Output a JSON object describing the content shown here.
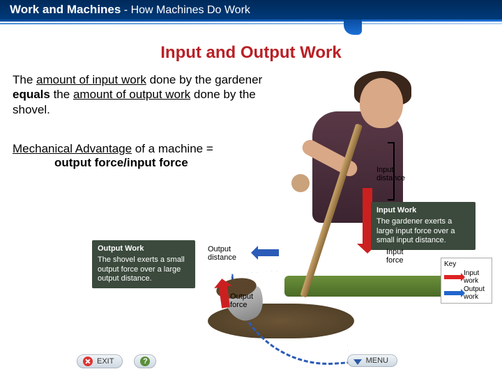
{
  "colors": {
    "header_bg_top": "#002a5a",
    "header_bg_bottom": "#003a7a",
    "accent1": "#0a4da0",
    "accent2": "#1a6fd6",
    "title_red": "#b92025",
    "input_arrow": "#cc2020",
    "output_arrow": "#2b5bb8",
    "caption_bg": "#3b4a3c",
    "caption_text": "#ffffff"
  },
  "fonts": {
    "family": "Arial, Helvetica, sans-serif",
    "header_title_pt": 17,
    "header_sub_pt": 16,
    "main_title_pt": 24,
    "body_pt": 17,
    "caption_pt": 11,
    "label_pt": 11,
    "key_pt": 10,
    "button_pt": 11
  },
  "header": {
    "title": "Work and Machines",
    "separator": " - ",
    "subtitle": "How Machines Do Work"
  },
  "main_title": "Input and Output Work",
  "body": {
    "t1": "The ",
    "t2": "amount of input work",
    "t3": " done by the gardener ",
    "t4": "equals",
    "t5": " the ",
    "t6": "amount of output work",
    "t7": " done by the shovel."
  },
  "mech": {
    "t1": "Mechanical Advantage",
    "t2": " of a machine = ",
    "t3": "output force/input force"
  },
  "captions": {
    "output": {
      "title": "Output Work",
      "text": "The shovel exerts a small output force over a large output distance."
    },
    "input": {
      "title": "Input Work",
      "text": "The gardener exerts a large input force over a small input distance."
    }
  },
  "labels": {
    "output_distance": "Output\ndistance",
    "output_force": "Output\nforce",
    "input_distance": "Input\ndistance",
    "input_force": "Input\nforce"
  },
  "key": {
    "title": "Key",
    "input_label": "Input\nwork",
    "output_label": "Output\nwork",
    "input_color": "#d22",
    "output_color": "#2266cc"
  },
  "buttons": {
    "exit": "EXIT",
    "help": "?",
    "menu": "MENU"
  }
}
